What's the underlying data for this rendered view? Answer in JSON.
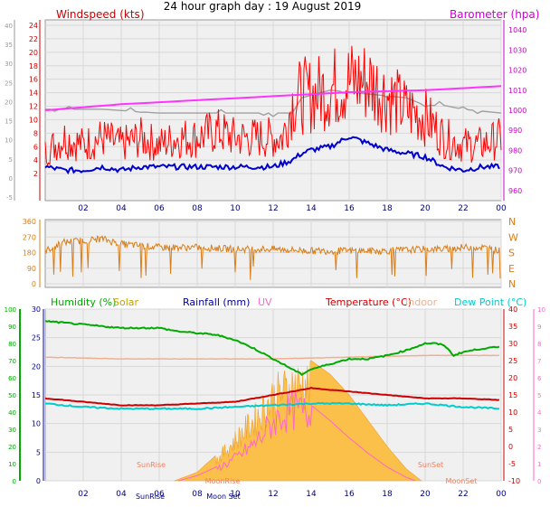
{
  "chart_data": [
    {
      "id": "wind",
      "type": "line",
      "title": "24 hour graph day : 19 August 2019",
      "left_label": "Windspeed (kts)",
      "right_label": "Barometer (hpa)",
      "x_ticks": [
        "02",
        "04",
        "06",
        "08",
        "10",
        "12",
        "14",
        "16",
        "18",
        "20",
        "22",
        "00"
      ],
      "x_range_hours": [
        0,
        24
      ],
      "y_left_ticks": [
        "-5",
        "0",
        "5",
        "10",
        "15",
        "20",
        "25",
        "30",
        "35",
        "40"
      ],
      "y_left_range": [
        -5,
        40
      ],
      "y_wind_ticks": [
        "2",
        "4",
        "6",
        "8",
        "10",
        "12",
        "14",
        "16",
        "18",
        "20",
        "22",
        "24"
      ],
      "y_wind_range": [
        0,
        24
      ],
      "y_baro_ticks": [
        "960",
        "970",
        "980",
        "990",
        "1000",
        "1010",
        "1020",
        "1030",
        "1040"
      ],
      "y_baro_range": [
        955,
        1045
      ],
      "grid": true,
      "colors": {
        "gust": "#ff0000",
        "avg": "#0000cc",
        "baro": "#ff33ff",
        "dir": "#a0a0a0",
        "title_left": "#cc0000",
        "title_right": "#cc00cc"
      },
      "series": [
        {
          "key": "gust",
          "hours": [
            0,
            1,
            2,
            3,
            4,
            5,
            6,
            7,
            8,
            9,
            10,
            11,
            12,
            12.5,
            13,
            13.5,
            14,
            15,
            16,
            17,
            18,
            19,
            20,
            21,
            22,
            23,
            24
          ],
          "values": [
            5,
            7,
            6,
            7,
            6,
            7,
            6,
            7,
            7,
            8,
            7,
            7,
            7,
            7,
            12,
            13,
            13,
            14,
            15,
            15,
            13,
            11,
            10,
            7,
            6,
            6,
            7
          ]
        },
        {
          "key": "avg",
          "hours": [
            0,
            1,
            2,
            3,
            4,
            5,
            6,
            7,
            8,
            9,
            10,
            11,
            12,
            12.5,
            13,
            13.5,
            14,
            15,
            16,
            17,
            18,
            19,
            20,
            21,
            22,
            23,
            24
          ],
          "values": [
            3,
            2.5,
            2.5,
            3,
            2.5,
            3,
            3,
            3,
            3,
            3,
            3,
            3,
            3,
            3.5,
            4,
            5,
            5.5,
            6,
            7.5,
            6.5,
            5.5,
            5,
            4.5,
            3,
            2.5,
            3,
            3
          ]
        },
        {
          "key": "baro",
          "hours": [
            0,
            4,
            8,
            12,
            16,
            20,
            24
          ],
          "values": [
            1000,
            1003,
            1005,
            1007,
            1009,
            1010,
            1012
          ]
        },
        {
          "key": "dir_trace",
          "hours": [
            0,
            3,
            6,
            10,
            12,
            13,
            13.5,
            15,
            17,
            19,
            20,
            21,
            22,
            24
          ],
          "values": [
            18,
            18,
            17,
            17,
            17,
            17,
            21,
            23,
            22,
            21,
            19,
            19,
            18,
            17
          ]
        }
      ]
    },
    {
      "id": "direction",
      "type": "line",
      "y_ticks": [
        "360",
        "270",
        "180",
        "90",
        "0"
      ],
      "y_range": [
        0,
        360
      ],
      "compass": [
        "N",
        "W",
        "S",
        "E",
        "N"
      ],
      "color": "#d97d16",
      "series": [
        {
          "key": "direction",
          "hours": [
            0,
            1,
            2,
            3,
            4,
            5,
            6,
            8,
            10,
            12,
            14,
            16,
            18,
            20,
            21,
            22,
            23,
            24
          ],
          "values": [
            190,
            240,
            250,
            260,
            230,
            220,
            210,
            210,
            200,
            200,
            190,
            190,
            190,
            200,
            200,
            210,
            210,
            190
          ]
        }
      ]
    },
    {
      "id": "temps",
      "type": "line",
      "legend": [
        {
          "label": "Humidity (%)",
          "color": "#00aa00"
        },
        {
          "label": "Solar",
          "color": "#c8a000"
        },
        {
          "label": "Rainfall (mm)",
          "color": "#000099"
        },
        {
          "label": "UV",
          "color": "#ff66cc"
        },
        {
          "label": "Temperature (°C)",
          "color": "#cc0000"
        },
        {
          "label": "Indoor",
          "color": "#f0b090"
        },
        {
          "label": "Dew Point (°C)",
          "color": "#00cccc"
        }
      ],
      "y_hum_ticks": [
        "0",
        "10",
        "20",
        "30",
        "40",
        "50",
        "60",
        "70",
        "80",
        "90",
        "100"
      ],
      "y_hum_range": [
        0,
        100
      ],
      "y_rain_ticks": [
        "0",
        "5",
        "10",
        "15",
        "20",
        "25",
        "30"
      ],
      "y_rain_range": [
        0,
        30
      ],
      "y_temp_ticks": [
        "-10",
        "-5",
        "0",
        "5",
        "10",
        "15",
        "20",
        "25",
        "30",
        "35",
        "40"
      ],
      "y_temp_range": [
        -10,
        40
      ],
      "y_uv_ticks": [
        "0",
        "1",
        "2",
        "3",
        "4",
        "5",
        "6",
        "7",
        "8",
        "9",
        "10"
      ],
      "y_uv_range": [
        0,
        10
      ],
      "annotations": [
        "SunRise",
        "SunSet",
        "MoonRise",
        "MoonSet",
        "SunRise",
        "Moon Set",
        "MoonRise"
      ],
      "series": [
        {
          "key": "humidity",
          "hours": [
            0,
            2,
            4,
            6,
            7,
            8,
            9,
            10,
            11,
            12,
            13,
            13.5,
            14,
            15,
            16,
            17,
            18,
            19,
            20,
            20.5,
            21,
            21.5,
            22,
            23,
            24
          ],
          "values": [
            93,
            91,
            89,
            89,
            87,
            86,
            85,
            82,
            77,
            71,
            65,
            62,
            65,
            68,
            71,
            71,
            73,
            76,
            80,
            80,
            79,
            73,
            75,
            77,
            78
          ]
        },
        {
          "key": "indoor",
          "hours": [
            0,
            4,
            8,
            12,
            16,
            20,
            24
          ],
          "values": [
            26,
            25.5,
            25.5,
            25.5,
            26,
            26.5,
            26.5
          ]
        },
        {
          "key": "temperature",
          "hours": [
            0,
            2,
            4,
            6,
            8,
            10,
            12,
            13,
            14,
            16,
            18,
            20,
            22,
            24
          ],
          "values": [
            14,
            13,
            12,
            12,
            12.5,
            13,
            15,
            16,
            17,
            16,
            15,
            14,
            14,
            13.5
          ]
        },
        {
          "key": "dewpoint",
          "hours": [
            0,
            2,
            4,
            6,
            8,
            10,
            12,
            14,
            16,
            18,
            20,
            22,
            24
          ],
          "values": [
            12.5,
            11.5,
            11,
            11,
            11,
            11.5,
            12,
            12.5,
            12.5,
            12,
            12.5,
            11.5,
            11
          ]
        },
        {
          "key": "solar",
          "hours": [
            6.8,
            8,
            9,
            10,
            11,
            12,
            13,
            13.5,
            14,
            15,
            16,
            17,
            18,
            19,
            19.8
          ],
          "values": [
            0,
            5,
            15,
            30,
            45,
            62,
            70,
            72,
            70,
            62,
            50,
            35,
            20,
            7,
            0
          ]
        },
        {
          "key": "uv",
          "hours": [
            7,
            8,
            9,
            10,
            11,
            12,
            12.5,
            13,
            13.5,
            14,
            15,
            16,
            17,
            18,
            19,
            19.5
          ],
          "values": [
            0,
            0.3,
            0.8,
            1.5,
            2.5,
            4,
            4.5,
            4.8,
            4.7,
            4.4,
            3.5,
            2.5,
            1.6,
            0.8,
            0.2,
            0
          ]
        }
      ]
    }
  ]
}
